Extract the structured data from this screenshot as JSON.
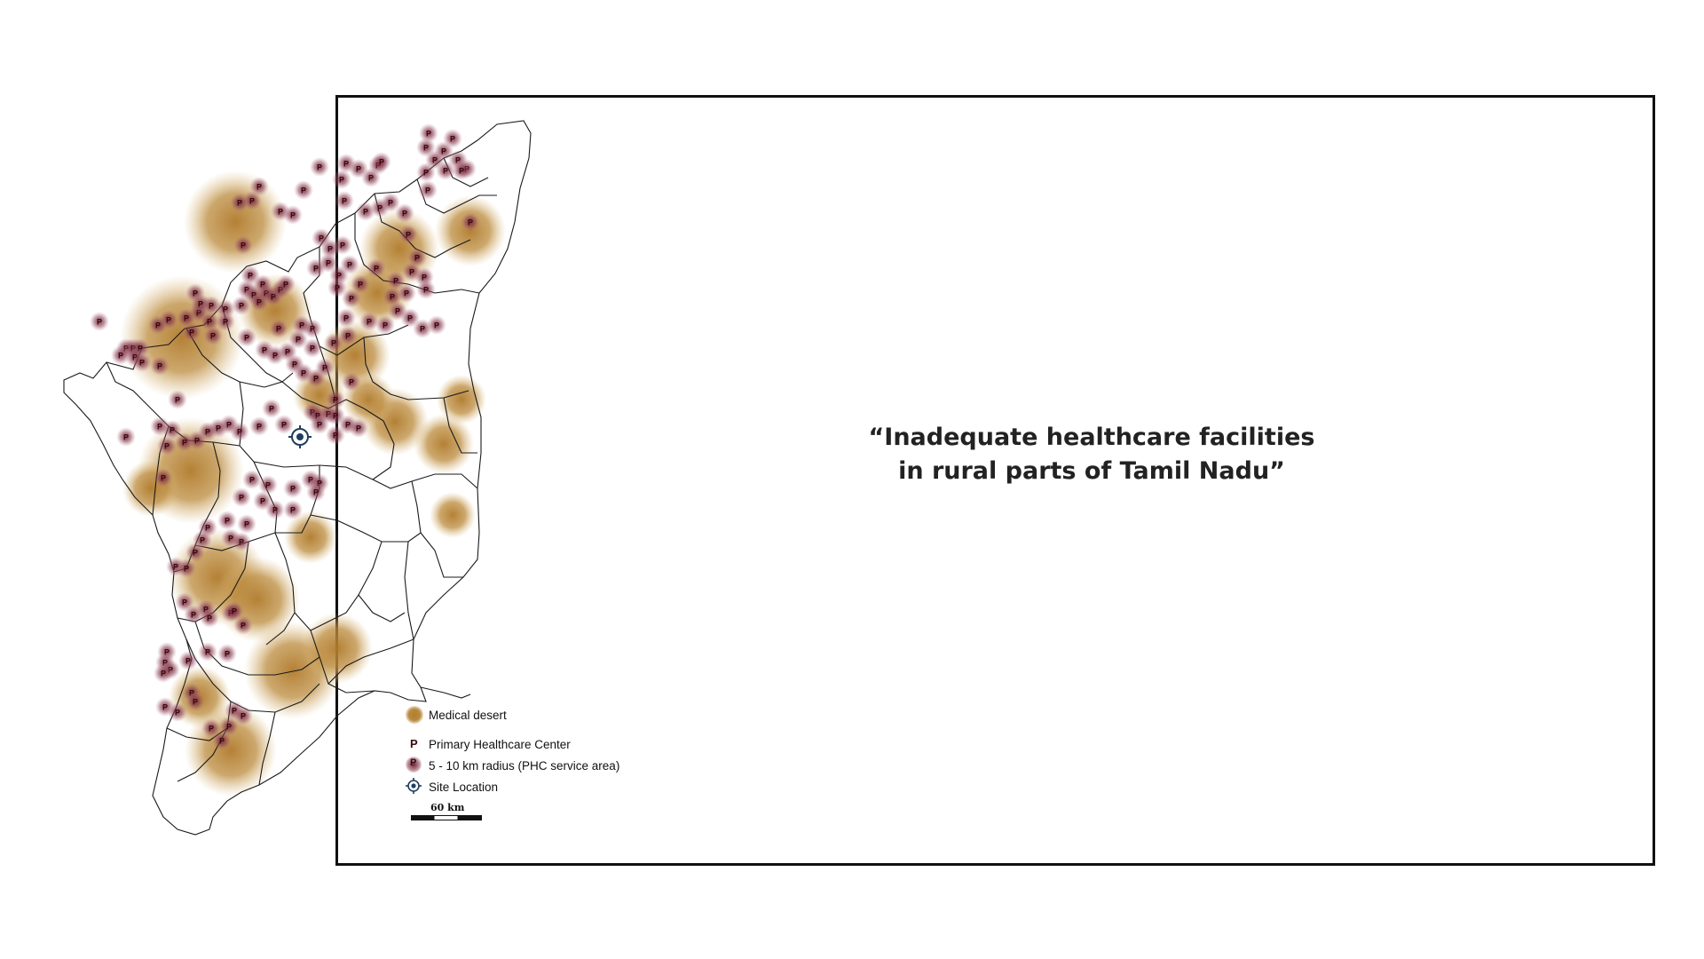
{
  "quote": {
    "line1": "“Inadequate healthcare facilities",
    "line2": "in rural parts of Tamil Nadu”"
  },
  "legend": {
    "medical_desert": "Medical desert",
    "phc": "Primary Healthcare Center",
    "phc_symbol": "P",
    "phc_radius": "5 - 10 km radius (PHC service area)",
    "site_location": "Site Location",
    "scale": "60 km"
  },
  "colors": {
    "desert": "#b8863a",
    "phc_radius": "#7a2a3c",
    "phc_letter": "#3a0a10",
    "boundary": "#1a1a1a",
    "site_marker": "#1f3e5e"
  }
}
